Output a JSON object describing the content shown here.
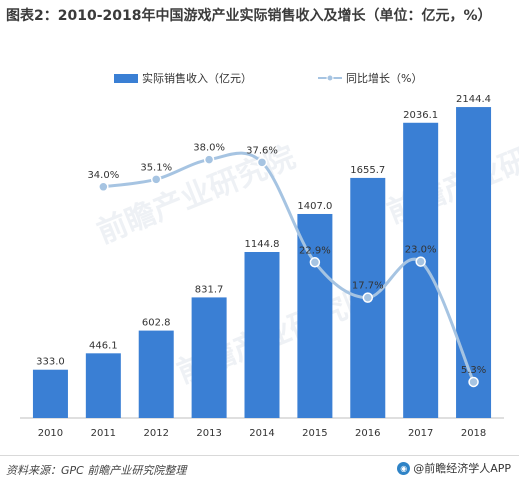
{
  "title": "图表2：2010-2018年中国游戏产业实际销售收入及增长（单位：亿元，%）",
  "source": "资料来源：GPC 前瞻产业研究院整理",
  "brand": "@前瞻经济学人APP",
  "watermark": "前瞻产业研究院",
  "chart_data": {
    "type": "bar",
    "categories": [
      "2010",
      "2011",
      "2012",
      "2013",
      "2014",
      "2015",
      "2016",
      "2017",
      "2018"
    ],
    "series": [
      {
        "name": "实际销售收入（亿元）",
        "type": "bar",
        "values": [
          333.0,
          446.1,
          602.8,
          831.7,
          1144.8,
          1407.0,
          1655.7,
          2036.1,
          2144.4
        ],
        "labels": [
          "333.0",
          "446.1",
          "602.8",
          "831.7",
          "1144.8",
          "1407.0",
          "1655.7",
          "2036.1",
          "2144.4"
        ],
        "color": "#3a7fd4"
      },
      {
        "name": "同比增长（%）",
        "type": "line",
        "values": [
          34.0,
          35.1,
          38.0,
          37.6,
          22.9,
          17.7,
          23.0,
          5.3
        ],
        "x": [
          "2011",
          "2012",
          "2013",
          "2014",
          "2015",
          "2016",
          "2017",
          "2018"
        ],
        "labels": [
          "34.0%",
          "35.1%",
          "38.0%",
          "37.6%",
          "22.9%",
          "17.7%",
          "23.0%",
          "5.3%"
        ],
        "color": "#a6c4e2"
      }
    ],
    "ylim_bar": [
      0,
      2200
    ],
    "ylim_line": [
      0,
      50
    ],
    "legend": "top"
  }
}
